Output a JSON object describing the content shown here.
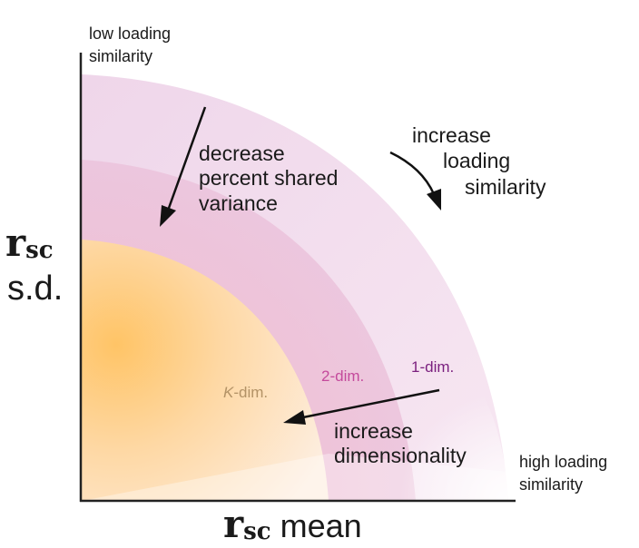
{
  "labels": {
    "top_corner": [
      "low loading",
      "similarity"
    ],
    "bottom_corner": [
      "high loading",
      "similarity"
    ],
    "y_axis_symbol": "r",
    "y_axis_subscript": "sc",
    "y_axis_suffix": "s.d.",
    "x_axis_symbol": "r",
    "x_axis_subscript": "sc",
    "x_axis_suffix": "mean",
    "decrease_variance": [
      "decrease",
      "percent shared",
      "variance"
    ],
    "increase_similarity": [
      "increase",
      "loading",
      "similarity"
    ],
    "increase_dimensionality": [
      "increase",
      "dimensionality"
    ],
    "k_dim_italic": "K",
    "k_dim_rest": "-dim.",
    "two_dim": "2-dim.",
    "one_dim": "1-dim."
  },
  "colors": {
    "outer_region": "#edd3e8",
    "middle_region": "#ecbcd2",
    "inner_region_center": "#ffc46a",
    "inner_region_edge": "#fde7cf",
    "k_dim_label": "#b39266",
    "two_dim_label": "#c44a9c",
    "one_dim_label": "#7a1f7e",
    "axis": "#222222",
    "text": "#1a1a1a"
  }
}
